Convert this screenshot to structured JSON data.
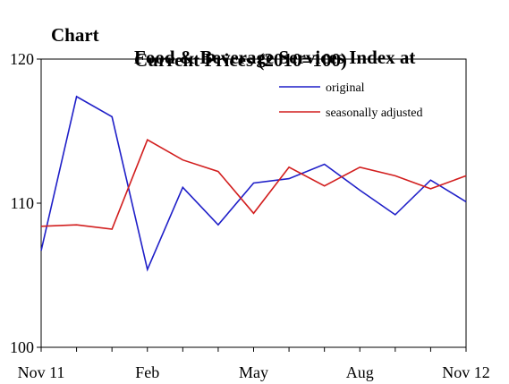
{
  "title": {
    "label": "Chart",
    "line1": "Food & Beverage Services Index at",
    "line2": "Current Prices (2010=100)"
  },
  "chart_data": {
    "type": "line",
    "title": "Food & Beverage Services Index at Current Prices (2010=100)",
    "ylim": [
      100,
      120
    ],
    "yticks": [
      "100",
      "110",
      "120"
    ],
    "x": [
      "Nov 11",
      "Dec 11",
      "Jan 12",
      "Feb 12",
      "Mar 12",
      "Apr 12",
      "May 12",
      "Jun 12",
      "Jul 12",
      "Aug 12",
      "Sep 12",
      "Oct 12",
      "Nov 12"
    ],
    "xtick_labels": [
      {
        "index": 0,
        "label": "Nov 11"
      },
      {
        "index": 3,
        "label": "Feb"
      },
      {
        "index": 6,
        "label": "May"
      },
      {
        "index": 9,
        "label": "Aug"
      },
      {
        "index": 12,
        "label": "Nov 12"
      }
    ],
    "grid": false,
    "legend_position": "top-right",
    "series": [
      {
        "name": "original",
        "color": "#1f1fc8",
        "values": [
          106.7,
          117.4,
          116.0,
          105.4,
          111.1,
          108.5,
          111.4,
          111.7,
          112.7,
          110.9,
          109.2,
          111.6,
          110.1
        ]
      },
      {
        "name": "seasonally adjusted",
        "color": "#d21e1e",
        "values": [
          108.4,
          108.5,
          108.2,
          114.4,
          113.0,
          112.2,
          109.3,
          112.5,
          111.2,
          112.5,
          111.9,
          111.0,
          111.9
        ]
      }
    ]
  }
}
